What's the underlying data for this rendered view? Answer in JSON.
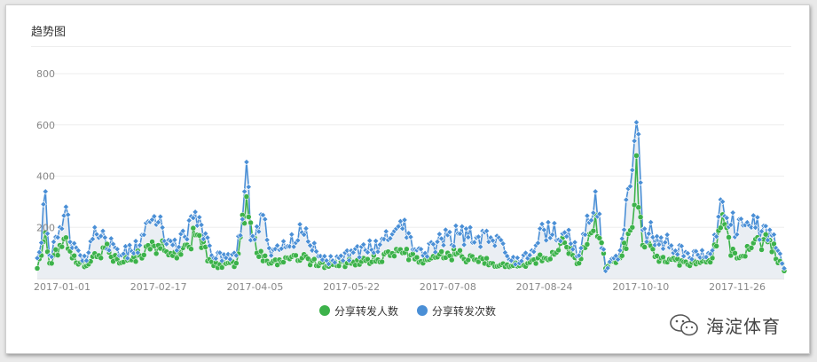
{
  "panel": {
    "title": "趋势图"
  },
  "colors": {
    "people": "#3cb24a",
    "times": "#4a8fd6",
    "area": "#e8ecf2",
    "grid": "#eeeeee",
    "axis": "#d0d0d0"
  },
  "watermark": {
    "text": "海淀体育",
    "icon": "wechat-icon"
  },
  "chart_data": {
    "type": "line",
    "title": "趋势图",
    "xlabel": "",
    "ylabel": "",
    "ylim": [
      0,
      800
    ],
    "yticks": [
      200,
      400,
      600,
      800
    ],
    "x_start": "2017-01-01",
    "x_end": "2017-12-31",
    "xticks": [
      "2017-01-01",
      "2017-02-17",
      "2017-04-05",
      "2017-05-22",
      "2017-07-08",
      "2017-08-24",
      "2017-10-10",
      "2017-11-26"
    ],
    "grid": true,
    "legend_position": "bottom",
    "series": [
      {
        "name": "分享转发人数",
        "color": "#3cb24a",
        "anchors": [
          [
            "2017-01-01",
            40
          ],
          [
            "2017-01-03",
            90
          ],
          [
            "2017-01-05",
            180
          ],
          [
            "2017-01-07",
            60
          ],
          [
            "2017-01-12",
            130
          ],
          [
            "2017-01-15",
            160
          ],
          [
            "2017-01-18",
            80
          ],
          [
            "2017-01-25",
            50
          ],
          [
            "2017-02-03",
            120
          ],
          [
            "2017-02-10",
            60
          ],
          [
            "2017-02-20",
            90
          ],
          [
            "2017-03-01",
            130
          ],
          [
            "2017-03-10",
            80
          ],
          [
            "2017-03-19",
            170
          ],
          [
            "2017-03-28",
            50
          ],
          [
            "2017-04-08",
            60
          ],
          [
            "2017-04-13",
            320
          ],
          [
            "2017-04-18",
            100
          ],
          [
            "2017-04-25",
            60
          ],
          [
            "2017-05-10",
            80
          ],
          [
            "2017-05-22",
            50
          ],
          [
            "2017-06-10",
            70
          ],
          [
            "2017-06-28",
            100
          ],
          [
            "2017-07-08",
            60
          ],
          [
            "2017-07-20",
            100
          ],
          [
            "2017-08-10",
            60
          ],
          [
            "2017-08-24",
            50
          ],
          [
            "2017-09-05",
            80
          ],
          [
            "2017-09-15",
            140
          ],
          [
            "2017-09-22",
            60
          ],
          [
            "2017-09-30",
            250
          ],
          [
            "2017-10-05",
            40
          ],
          [
            "2017-10-12",
            80
          ],
          [
            "2017-10-18",
            200
          ],
          [
            "2017-10-20",
            480
          ],
          [
            "2017-10-23",
            130
          ],
          [
            "2017-11-01",
            80
          ],
          [
            "2017-11-15",
            50
          ],
          [
            "2017-11-26",
            80
          ],
          [
            "2017-12-01",
            250
          ],
          [
            "2017-12-05",
            90
          ],
          [
            "2017-12-15",
            120
          ],
          [
            "2017-12-24",
            150
          ],
          [
            "2017-12-31",
            30
          ]
        ]
      },
      {
        "name": "分享转发次数",
        "color": "#4a8fd6",
        "anchors": [
          [
            "2017-01-01",
            80
          ],
          [
            "2017-01-03",
            140
          ],
          [
            "2017-01-04",
            290
          ],
          [
            "2017-01-05",
            340
          ],
          [
            "2017-01-07",
            90
          ],
          [
            "2017-01-12",
            200
          ],
          [
            "2017-01-15",
            280
          ],
          [
            "2017-01-18",
            120
          ],
          [
            "2017-01-25",
            70
          ],
          [
            "2017-01-29",
            200
          ],
          [
            "2017-02-03",
            160
          ],
          [
            "2017-02-10",
            90
          ],
          [
            "2017-02-20",
            130
          ],
          [
            "2017-02-26",
            230
          ],
          [
            "2017-03-01",
            220
          ],
          [
            "2017-03-10",
            110
          ],
          [
            "2017-03-19",
            260
          ],
          [
            "2017-03-28",
            80
          ],
          [
            "2017-04-08",
            90
          ],
          [
            "2017-04-12",
            340
          ],
          [
            "2017-04-13",
            455
          ],
          [
            "2017-04-15",
            150
          ],
          [
            "2017-04-20",
            250
          ],
          [
            "2017-04-25",
            90
          ],
          [
            "2017-05-10",
            180
          ],
          [
            "2017-05-22",
            70
          ],
          [
            "2017-06-10",
            110
          ],
          [
            "2017-06-28",
            195
          ],
          [
            "2017-07-08",
            90
          ],
          [
            "2017-07-20",
            170
          ],
          [
            "2017-08-10",
            160
          ],
          [
            "2017-08-24",
            60
          ],
          [
            "2017-09-05",
            190
          ],
          [
            "2017-09-15",
            180
          ],
          [
            "2017-09-22",
            90
          ],
          [
            "2017-09-30",
            340
          ],
          [
            "2017-10-05",
            30
          ],
          [
            "2017-10-12",
            110
          ],
          [
            "2017-10-17",
            360
          ],
          [
            "2017-10-20",
            610
          ],
          [
            "2017-10-23",
            190
          ],
          [
            "2017-11-01",
            160
          ],
          [
            "2017-11-15",
            80
          ],
          [
            "2017-11-26",
            110
          ],
          [
            "2017-12-01",
            300
          ],
          [
            "2017-12-05",
            210
          ],
          [
            "2017-12-15",
            200
          ],
          [
            "2017-12-24",
            190
          ],
          [
            "2017-12-31",
            40
          ]
        ]
      }
    ]
  }
}
